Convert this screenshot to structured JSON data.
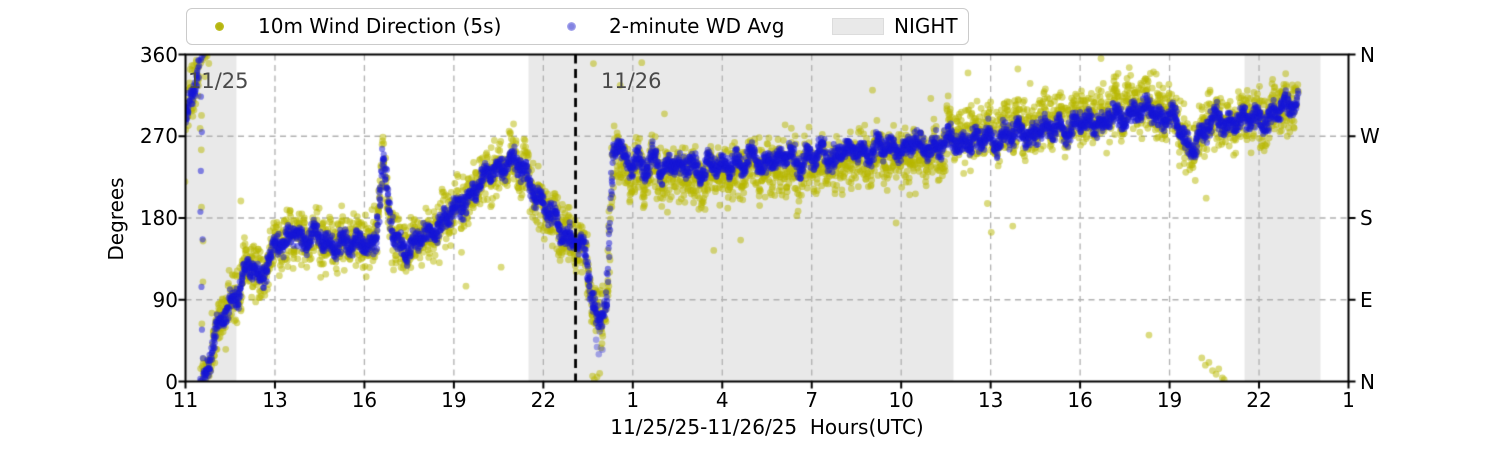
{
  "chart_data": {
    "type": "scatter",
    "xlabel": "11/25/25-11/26/25  Hours(UTC)",
    "ylabel": "Degrees",
    "x_axis": {
      "tick_labels": [
        "11",
        "13",
        "16",
        "19",
        "22",
        "1",
        "4",
        "7",
        "10",
        "13",
        "16",
        "19",
        "22",
        "1"
      ]
    },
    "y_axis": {
      "range": [
        0,
        360
      ],
      "ticks": [
        0,
        90,
        180,
        270,
        360
      ],
      "compass_labels": [
        "N",
        "E",
        "S",
        "W",
        "N"
      ]
    },
    "grid": true,
    "legend": {
      "position": "top",
      "night_label": "NIGHT"
    },
    "annotations": [
      {
        "text": "11/25"
      },
      {
        "text": "11/26"
      }
    ],
    "colors": {
      "raw": "#b8b800",
      "avg": "#1616d7",
      "night": "rgba(0,0,0,0.085)",
      "grid": "#b0b0b0",
      "day_line": "#000000"
    },
    "series": [
      {
        "name": "10m Wind Direction (5s)",
        "role": "raw",
        "jitter_deg": 45,
        "alpha": 0.5
      },
      {
        "name": "2-minute WD Avg",
        "role": "avg",
        "jitter_deg": 16,
        "alpha": 0.5
      }
    ],
    "day_boundary_u": 4.36,
    "night_regions_u": [
      [
        0,
        0.57
      ],
      [
        3.834,
        8.585
      ],
      [
        11.838,
        12.687
      ]
    ],
    "u_end": 12.43,
    "mean_waypoints": [
      [
        0.0,
        285
      ],
      [
        0.06,
        305
      ],
      [
        0.1,
        322
      ],
      [
        0.165,
        358
      ],
      [
        0.19,
        2
      ],
      [
        0.26,
        25
      ],
      [
        0.34,
        52
      ],
      [
        0.45,
        75
      ],
      [
        0.56,
        95
      ],
      [
        0.66,
        120
      ],
      [
        0.74,
        130
      ],
      [
        0.84,
        107
      ],
      [
        0.95,
        145
      ],
      [
        1.03,
        158
      ],
      [
        1.12,
        150
      ],
      [
        1.22,
        166
      ],
      [
        1.32,
        157
      ],
      [
        1.42,
        163
      ],
      [
        1.52,
        155
      ],
      [
        1.62,
        146
      ],
      [
        1.72,
        158
      ],
      [
        1.82,
        152
      ],
      [
        1.92,
        150
      ],
      [
        2.01,
        156
      ],
      [
        2.08,
        150
      ],
      [
        2.13,
        158
      ],
      [
        2.17,
        205
      ],
      [
        2.21,
        245
      ],
      [
        2.25,
        205
      ],
      [
        2.32,
        162
      ],
      [
        2.42,
        150
      ],
      [
        2.52,
        147
      ],
      [
        2.62,
        155
      ],
      [
        2.72,
        163
      ],
      [
        2.82,
        172
      ],
      [
        2.92,
        180
      ],
      [
        3.02,
        188
      ],
      [
        3.12,
        200
      ],
      [
        3.22,
        212
      ],
      [
        3.32,
        222
      ],
      [
        3.42,
        230
      ],
      [
        3.52,
        238
      ],
      [
        3.62,
        243
      ],
      [
        3.72,
        237
      ],
      [
        3.82,
        225
      ],
      [
        3.92,
        208
      ],
      [
        4.03,
        190
      ],
      [
        4.12,
        175
      ],
      [
        4.22,
        165
      ],
      [
        4.36,
        157
      ],
      [
        4.46,
        143
      ],
      [
        4.54,
        95
      ],
      [
        4.58,
        78
      ],
      [
        4.62,
        70
      ],
      [
        4.67,
        82
      ],
      [
        4.71,
        95
      ],
      [
        4.78,
        250
      ],
      [
        4.84,
        262
      ],
      [
        4.9,
        245
      ],
      [
        4.97,
        238
      ],
      [
        5.04,
        252
      ],
      [
        5.14,
        228
      ],
      [
        5.24,
        247
      ],
      [
        5.34,
        231
      ],
      [
        5.44,
        245
      ],
      [
        5.54,
        229
      ],
      [
        5.64,
        243
      ],
      [
        5.74,
        230
      ],
      [
        5.84,
        241
      ],
      [
        5.94,
        233
      ],
      [
        6.04,
        237
      ],
      [
        6.14,
        246
      ],
      [
        6.24,
        236
      ],
      [
        6.34,
        247
      ],
      [
        6.44,
        238
      ],
      [
        6.54,
        249
      ],
      [
        6.64,
        239
      ],
      [
        6.74,
        250
      ],
      [
        6.84,
        241
      ],
      [
        6.94,
        248
      ],
      [
        7.04,
        244
      ],
      [
        7.14,
        254
      ],
      [
        7.24,
        246
      ],
      [
        7.34,
        256
      ],
      [
        7.44,
        248
      ],
      [
        7.54,
        258
      ],
      [
        7.64,
        250
      ],
      [
        7.74,
        259
      ],
      [
        7.84,
        252
      ],
      [
        7.94,
        260
      ],
      [
        8.05,
        254
      ],
      [
        8.15,
        262
      ],
      [
        8.25,
        256
      ],
      [
        8.35,
        264
      ],
      [
        8.45,
        258
      ],
      [
        8.55,
        266
      ],
      [
        8.65,
        260
      ],
      [
        8.75,
        268
      ],
      [
        8.85,
        262
      ],
      [
        8.95,
        270
      ],
      [
        9.05,
        265
      ],
      [
        9.15,
        273
      ],
      [
        9.25,
        268
      ],
      [
        9.35,
        276
      ],
      [
        9.45,
        271
      ],
      [
        9.55,
        280
      ],
      [
        9.65,
        274
      ],
      [
        9.75,
        282
      ],
      [
        9.85,
        277
      ],
      [
        9.95,
        285
      ],
      [
        10.06,
        281
      ],
      [
        10.16,
        290
      ],
      [
        10.26,
        284
      ],
      [
        10.36,
        293
      ],
      [
        10.46,
        287
      ],
      [
        10.56,
        297
      ],
      [
        10.62,
        305
      ],
      [
        10.7,
        293
      ],
      [
        10.76,
        300
      ],
      [
        10.86,
        290
      ],
      [
        10.96,
        296
      ],
      [
        11.07,
        286
      ],
      [
        11.14,
        270
      ],
      [
        11.22,
        254
      ],
      [
        11.3,
        266
      ],
      [
        11.38,
        277
      ],
      [
        11.48,
        285
      ],
      [
        11.58,
        290
      ],
      [
        11.68,
        284
      ],
      [
        11.78,
        290
      ],
      [
        11.88,
        285
      ],
      [
        11.98,
        292
      ],
      [
        12.08,
        289
      ],
      [
        12.18,
        296
      ],
      [
        12.28,
        302
      ],
      [
        12.36,
        307
      ],
      [
        12.43,
        312
      ]
    ],
    "stray_raw": [
      [
        4.56,
        350
      ],
      [
        5.1,
        351
      ],
      [
        4.55,
        6
      ],
      [
        4.57,
        2
      ],
      [
        4.6,
        5
      ],
      [
        4.63,
        9
      ],
      [
        11.36,
        26
      ],
      [
        11.4,
        18
      ],
      [
        11.44,
        21
      ],
      [
        11.48,
        12
      ],
      [
        11.52,
        8
      ],
      [
        11.55,
        14
      ],
      [
        11.59,
        4
      ],
      [
        11.61,
        2
      ]
    ],
    "stray_avg": [
      [
        4.59,
        46
      ],
      [
        4.6,
        38
      ],
      [
        4.62,
        30
      ],
      [
        4.63,
        55
      ],
      [
        4.65,
        60
      ],
      [
        4.66,
        35
      ]
    ]
  }
}
